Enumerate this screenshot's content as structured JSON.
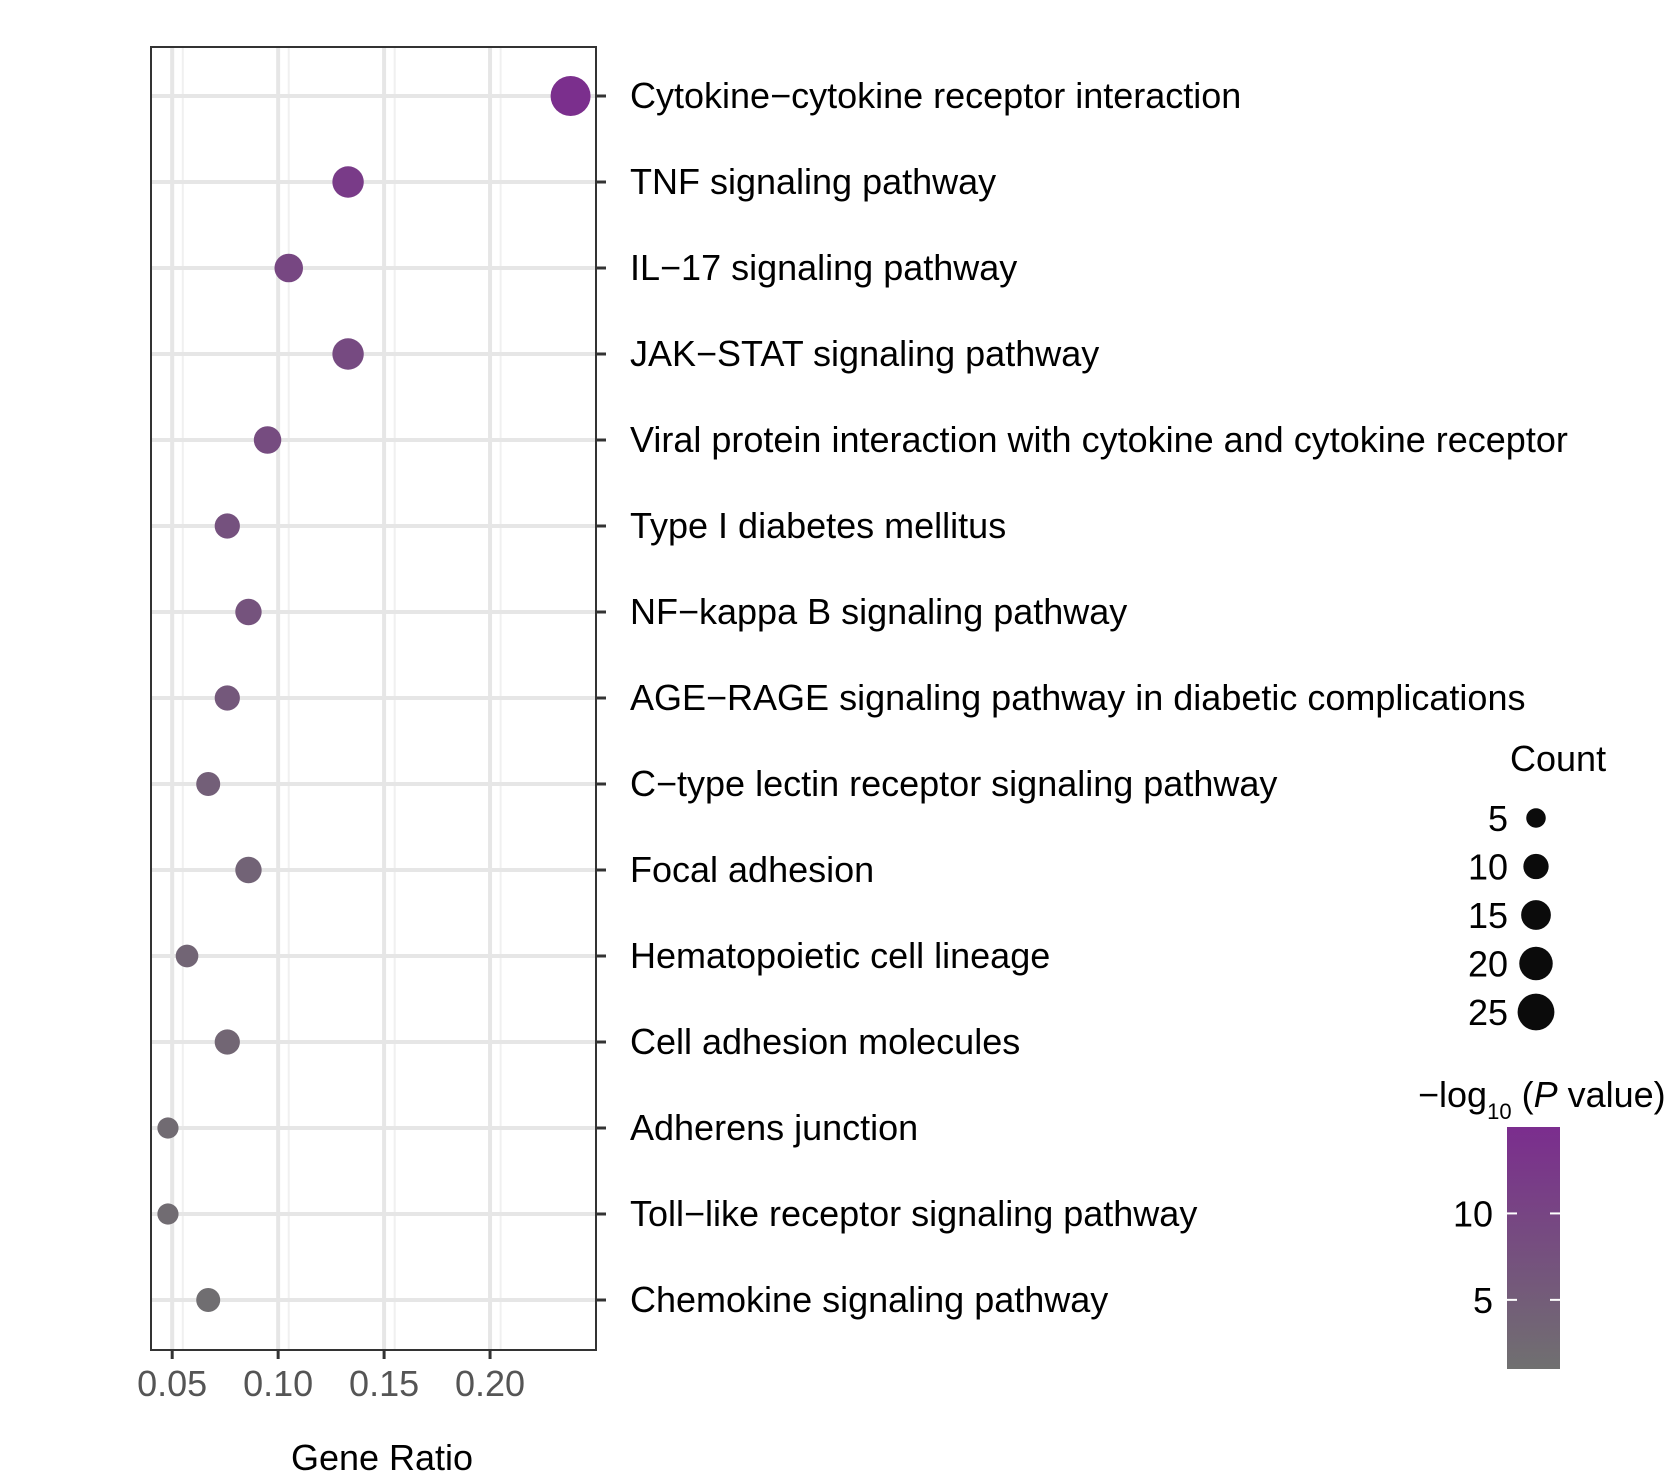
{
  "chart_data": {
    "type": "scatter",
    "title": "",
    "xlabel": "Gene Ratio",
    "ylabel": "",
    "xlim": [
      0.04,
      0.25
    ],
    "xticks": [
      0.05,
      0.1,
      0.15,
      0.2
    ],
    "xtick_labels": [
      "0.05",
      "0.10",
      "0.15",
      "0.20"
    ],
    "grid": true,
    "categories": [
      "Cytokine−cytokine receptor interaction",
      "TNF signaling pathway",
      "IL−17 signaling pathway",
      "JAK−STAT signaling pathway",
      "Viral protein interaction with cytokine and cytokine receptor",
      "Type I diabetes mellitus",
      "NF−kappa B signaling pathway",
      "AGE−RAGE signaling pathway in diabetic complications",
      "C−type lectin receptor signaling pathway",
      "Focal adhesion",
      "Hematopoietic cell lineage",
      "Cell adhesion molecules",
      "Adherens junction",
      "Toll−like receptor signaling pathway",
      "Chemokine signaling pathway"
    ],
    "gene_ratio": [
      0.238,
      0.133,
      0.105,
      0.133,
      0.095,
      0.076,
      0.086,
      0.076,
      0.067,
      0.086,
      0.057,
      0.076,
      0.048,
      0.048,
      0.067
    ],
    "count": [
      25,
      14,
      11,
      14,
      10,
      8,
      9,
      8,
      7,
      9,
      6,
      8,
      5,
      5,
      7
    ],
    "neg_log10_p": [
      14.5,
      12.0,
      9.5,
      9.0,
      8.5,
      7.5,
      7.0,
      6.0,
      4.5,
      3.8,
      3.2,
      3.0,
      2.0,
      1.8,
      1.5
    ],
    "legend": {
      "size_title": "Count",
      "size_breaks": [
        5,
        10,
        15,
        20,
        25
      ],
      "size_labels": [
        "5",
        "10",
        "15",
        "20",
        "25"
      ],
      "color_title_prefix": "−log",
      "color_title_sub": "10",
      "color_title_p": "P",
      "color_title_suffix": " value)",
      "color_title_open": " (",
      "color_range": [
        1,
        15
      ],
      "color_ticks": [
        5,
        10
      ],
      "color_tick_labels": [
        "5",
        "10"
      ],
      "color_low": "#707070",
      "color_high": "#7b2d8e",
      "position": "right"
    }
  }
}
